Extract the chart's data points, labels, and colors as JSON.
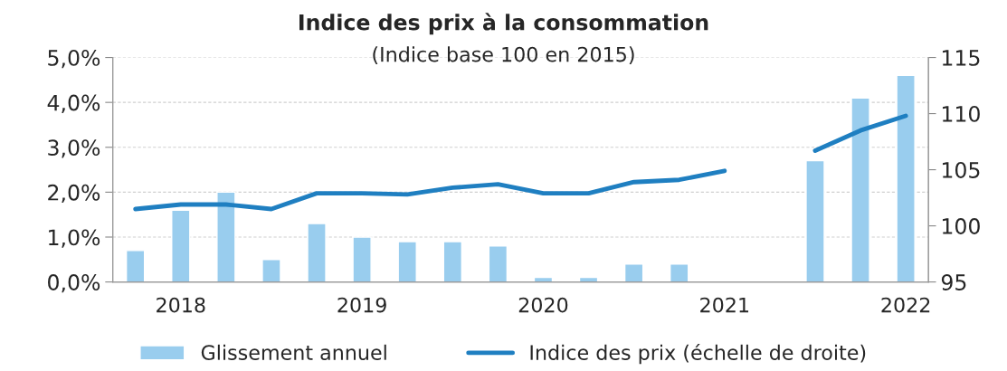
{
  "chart_data": {
    "type": "bar",
    "title": "Indice des prix à la consommation",
    "subtitle": "(Indice base 100 en 2015)",
    "categories": [
      null,
      "2018",
      null,
      null,
      null,
      "2019",
      null,
      null,
      null,
      "2020",
      null,
      null,
      null,
      "2021",
      null,
      null,
      null,
      "2022"
    ],
    "series": [
      {
        "name": "Glissement annuel",
        "color": "#99cdee",
        "values": [
          0.7,
          1.6,
          2.0,
          0.5,
          1.3,
          1.0,
          0.9,
          0.9,
          0.8,
          0.1,
          0.1,
          0.4,
          0.4,
          null,
          null,
          2.7,
          4.1,
          4.6
        ]
      },
      {
        "name": "Indice des prix (échelle de droite)",
        "type": "line",
        "axis": "y2",
        "color": "#1f7fc1",
        "values": [
          101.5,
          101.9,
          101.9,
          101.5,
          102.9,
          102.9,
          102.8,
          103.4,
          103.7,
          102.9,
          102.9,
          103.9,
          104.1,
          104.9,
          null,
          106.7,
          108.5,
          109.8
        ]
      }
    ],
    "ylim": [
      0,
      5
    ],
    "yticks": [
      {
        "value": 0,
        "label": "0,0%"
      },
      {
        "value": 1,
        "label": "1,0%"
      },
      {
        "value": 2,
        "label": "2,0%"
      },
      {
        "value": 3,
        "label": "3,0%"
      },
      {
        "value": 4,
        "label": "4,0%"
      },
      {
        "value": 5,
        "label": "5,0%"
      }
    ],
    "y2lim": [
      95,
      115
    ],
    "y2ticks": [
      95,
      100,
      105,
      110,
      115
    ],
    "grid": "y",
    "legend": "bottom"
  }
}
